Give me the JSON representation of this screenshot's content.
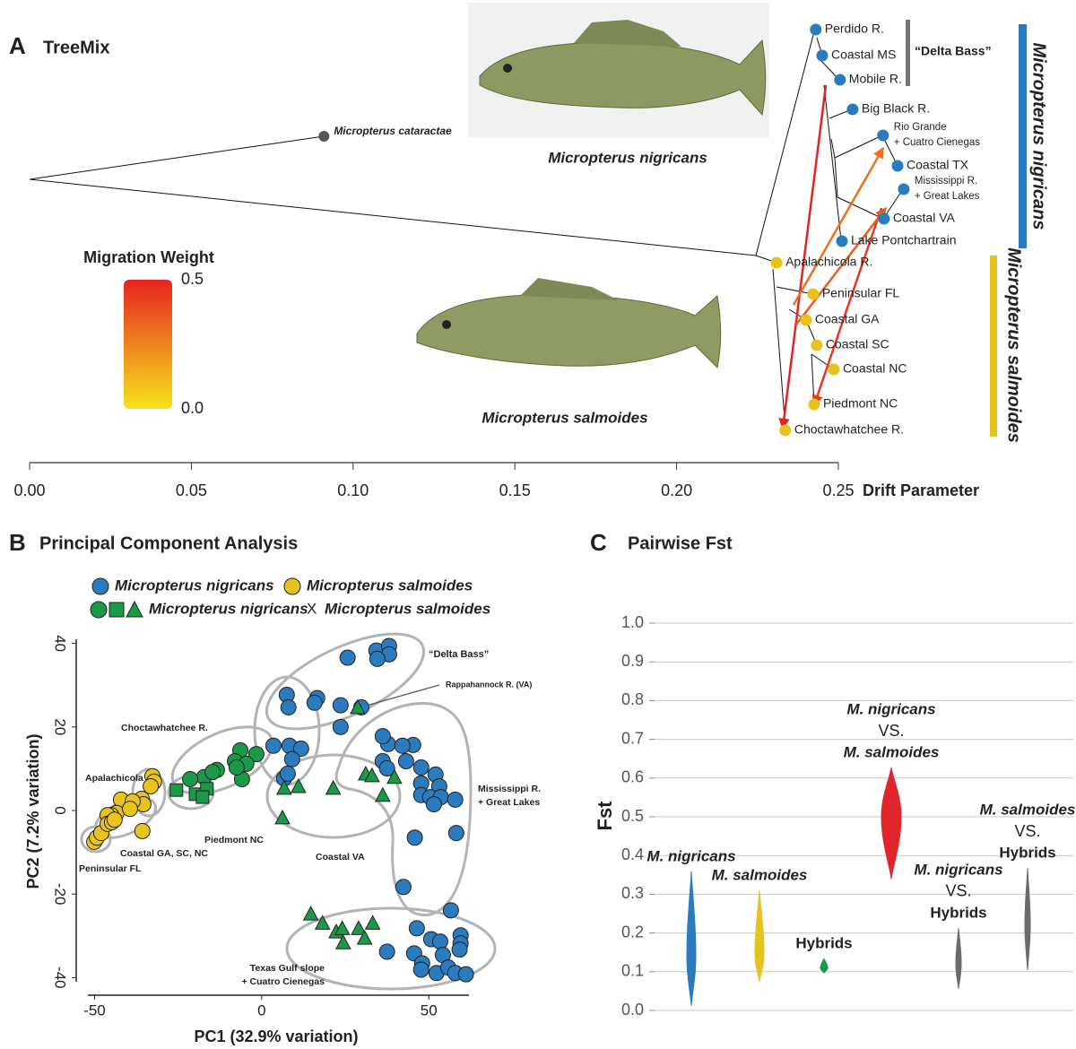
{
  "chart_data": [
    {
      "type": "tree",
      "label": "A",
      "title": "TreeMix",
      "xlabel": "Drift Parameter",
      "xlim": [
        0,
        0.25
      ],
      "xticks": [
        {
          "value": 0,
          "label": "0.00"
        },
        0.05,
        {
          "value": 0.1,
          "label": "0.10"
        },
        0.15,
        {
          "value": 0.2,
          "label": "0.20"
        },
        0.25
      ],
      "outgroup": {
        "name": "Micropterus cataractae",
        "x": 0.091,
        "color": "#555555"
      },
      "leaves": [
        {
          "name": [
            "Perdido R."
          ],
          "x": 0.243,
          "color": "#2b7bbf"
        },
        {
          "name": [
            "Coastal MS"
          ],
          "x": 0.245,
          "color": "#2b7bbf"
        },
        {
          "name": [
            "Mobile R."
          ],
          "x": 0.2505,
          "color": "#2b7bbf"
        },
        {
          "name": [
            "Big Black R."
          ],
          "x": 0.2544,
          "color": "#2b7bbf"
        },
        {
          "name": [
            "Rio Grande",
            "+ Cuatro Cienegas"
          ],
          "x": 0.2638,
          "color": "#2b7bbf"
        },
        {
          "name": [
            "Coastal TX"
          ],
          "x": 0.2683,
          "color": "#2b7bbf"
        },
        {
          "name": [
            "Mississippi R.",
            "+ Great Lakes"
          ],
          "x": 0.2702,
          "color": "#2b7bbf"
        },
        {
          "name": [
            "Coastal VA"
          ],
          "x": 0.2641,
          "color": "#2b7bbf"
        },
        {
          "name": [
            "Lake Pontchartrain"
          ],
          "x": 0.2511,
          "color": "#2b7bbf"
        },
        {
          "name": [
            "Apalachicola R."
          ],
          "x": 0.2309,
          "color": "#e8c31e"
        },
        {
          "name": [
            "Peninsular FL"
          ],
          "x": 0.2422,
          "color": "#e8c31e"
        },
        {
          "name": [
            "Coastal GA"
          ],
          "x": 0.24,
          "color": "#e8c31e"
        },
        {
          "name": [
            "Coastal SC"
          ],
          "x": 0.2433,
          "color": "#e8c31e"
        },
        {
          "name": [
            "Coastal NC"
          ],
          "x": 0.2486,
          "color": "#e8c31e"
        },
        {
          "name": [
            "Piedmont NC"
          ],
          "x": 0.2425,
          "color": "#e8c31e"
        },
        {
          "name": [
            "Choctawhatchee R."
          ],
          "x": 0.2336,
          "color": "#e8c31e"
        }
      ],
      "migration": {
        "title": "Migration Weight",
        "colors": [
          "#f7e21b",
          "#e52421"
        ],
        "lim": [
          0,
          0.5
        ],
        "ticks": [
          {
            "value": 0,
            "label": "0.0"
          },
          0.5
        ],
        "weights": [
          0.5,
          0.45,
          0.3,
          0.35
        ]
      },
      "images": [
        {
          "caption": "Micropterus nigricans"
        },
        {
          "caption": "Micropterus salmoides"
        }
      ],
      "groups": [
        {
          "name": "“Delta Bass”",
          "color": "#777777"
        },
        {
          "name": "Micropterus nigricans",
          "color": "#2b7bbf"
        },
        {
          "name": "Micropterus salmoides",
          "color": "#e8c31e"
        }
      ]
    },
    {
      "type": "scatter",
      "label": "B",
      "title": "Principal Component Analysis",
      "xlabel": "PC1 (32.9% variation)",
      "ylabel": "PC2 (7.2% variation)",
      "xlim": [
        -52,
        62
      ],
      "xticks": [
        -50,
        0,
        50
      ],
      "ylim": [
        -41,
        41
      ],
      "yticks": [
        -40,
        -20,
        0,
        20,
        40
      ],
      "series": [
        {
          "name": "Micropterus nigricans",
          "color": "#2b7bbf",
          "marker": "circle",
          "x": [
            16.6,
            15.8,
            25.7,
            34.3,
            38.1,
            38.1,
            34.6,
            7.5,
            8.0,
            3.5,
            8.3,
            11.8,
            9.1,
            6.7,
            7.8,
            23.6,
            23.6,
            29.8,
            37.8,
            36.2,
            45.3,
            42.1,
            43.2,
            36.2,
            37.5,
            47.7,
            52.0,
            47.7,
            53.1,
            47.7,
            50.4,
            53.6,
            57.9,
            51.5,
            58.2,
            45.8,
            42.4,
            56.6,
            46.4,
            45.6,
            50.7,
            53.4,
            54.2,
            59.5,
            59.5,
            59.2,
            48.0,
            52.3,
            55.8,
            57.9,
            61.1,
            47.7,
            37.5
          ],
          "y": [
            26.9,
            25.8,
            36.6,
            38.3,
            39.4,
            37.4,
            36.3,
            27.7,
            24.7,
            15.5,
            15.5,
            14.8,
            12.3,
            7.7,
            8.8,
            25.2,
            20.0,
            24.7,
            15.9,
            17.8,
            15.7,
            15.5,
            11.8,
            11.8,
            10.1,
            10.3,
            8.6,
            6.5,
            5.8,
            3.7,
            3.2,
            3.2,
            2.6,
            1.5,
            -5.4,
            -6.5,
            -18.3,
            -23.9,
            -28.2,
            -34.2,
            -30.8,
            -31.4,
            -34.6,
            -29.9,
            -31.8,
            -33.3,
            -36.6,
            -38.9,
            -37.6,
            -38.9,
            -39.2,
            -38.1,
            -33.8
          ]
        },
        {
          "name": "Micropterus salmoides",
          "color": "#e8c31e",
          "marker": "circle",
          "x": [
            -32.7,
            -32.2,
            -33.2,
            -35.9,
            -35.4,
            -42.1,
            -43.4,
            -38.6,
            -35.7,
            -39.4,
            -45.0,
            -46.1,
            -50.1,
            -49.3,
            -48.0,
            -46.1,
            -44.8,
            -44.0
          ],
          "y": [
            8.2,
            6.9,
            5.8,
            2.8,
            1.5,
            2.6,
            -0.6,
            2.2,
            -4.9,
            0.4,
            -1.1,
            -1.1,
            -7.5,
            -6.5,
            -5.4,
            -3.2,
            -2.8,
            -2.2
          ]
        },
        {
          "color": "#1a9a48",
          "marker": "circle",
          "x": [
            -6.4,
            -1.6,
            -8.0,
            -4.6,
            -13.4,
            -17.2,
            -14.7,
            -21.4,
            -5.9,
            -7.5
          ],
          "y": [
            14.4,
            13.5,
            11.8,
            11.2,
            9.7,
            8.0,
            9.2,
            7.5,
            7.5,
            10.3
          ]
        },
        {
          "color": "#1a9a48",
          "marker": "square",
          "x": [
            -25.5,
            -19.8,
            -16.4,
            -17.7
          ],
          "y": [
            4.9,
            3.9,
            5.2,
            3.2
          ]
        },
        {
          "color": "#1a9a48",
          "marker": "triangle",
          "x": [
            6.7,
            11.0,
            21.4,
            31.1,
            33.0,
            39.7,
            36.2,
            6.2,
            28.7,
            14.7,
            18.2,
            22.3,
            24.4,
            29.0,
            30.8,
            33.2,
            24.1
          ],
          "y": [
            5.4,
            5.8,
            5.4,
            8.8,
            8.4,
            8.0,
            3.7,
            -1.7,
            24.7,
            -24.7,
            -26.9,
            -29.0,
            -31.6,
            -28.2,
            -30.5,
            -26.9,
            -28.2
          ]
        }
      ],
      "hybrid_legend": [
        "Micropterus nigricans",
        "X",
        "Micropterus salmoides"
      ],
      "annotations": [
        [
          "“Delta Bass”"
        ],
        [
          "Rappahannock R. (VA)"
        ],
        [
          "Choctawhatchee R."
        ],
        [
          "Apalachicola R."
        ],
        [
          "Mississippi R.",
          "+ Great Lakes"
        ],
        [
          "Piedmont NC"
        ],
        [
          "Coastal GA, SC, NC"
        ],
        [
          "Peninsular FL"
        ],
        [
          "Coastal VA"
        ],
        [
          "Texas Gulf slope",
          "+ Cuatro Cienegas"
        ]
      ]
    },
    {
      "type": "violin",
      "label": "C",
      "title": "Pairwise Fst",
      "ylabel": "Fst",
      "ylim": [
        0,
        1
      ],
      "yticks": [
        {
          "value": 0,
          "label": "0.0"
        },
        0.1,
        0.2,
        0.3,
        0.4,
        0.5,
        0.6,
        0.7,
        0.8,
        0.9,
        {
          "value": 1,
          "label": "1.0"
        }
      ],
      "grid": true,
      "series": [
        {
          "name": [
            "M. nigricans"
          ],
          "color": "#2b7bbf",
          "min": 0.012,
          "max": 0.359,
          "mode": 0.14
        },
        {
          "name": [
            "M. salmoides"
          ],
          "color": "#e8c31e",
          "min": 0.074,
          "max": 0.31,
          "mode": 0.145
        },
        {
          "name": [
            "Hybrids"
          ],
          "color": "#1a9a48",
          "min": 0.097,
          "max": 0.134,
          "mode": 0.11
        },
        {
          "name": [
            "M. nigricans",
            "VS.",
            "M. salmoides"
          ],
          "color": "#e0262b",
          "min": 0.34,
          "max": 0.627,
          "mode": 0.5
        },
        {
          "name": [
            "M. nigricans",
            "VS.",
            "Hybrids"
          ],
          "color": "#6b6b6b",
          "min": 0.056,
          "max": 0.213,
          "mode": 0.12
        },
        {
          "name": [
            "M. salmoides",
            "VS.",
            "Hybrids"
          ],
          "color": "#6b6b6b",
          "min": 0.104,
          "max": 0.368,
          "mode": 0.22
        }
      ]
    }
  ]
}
